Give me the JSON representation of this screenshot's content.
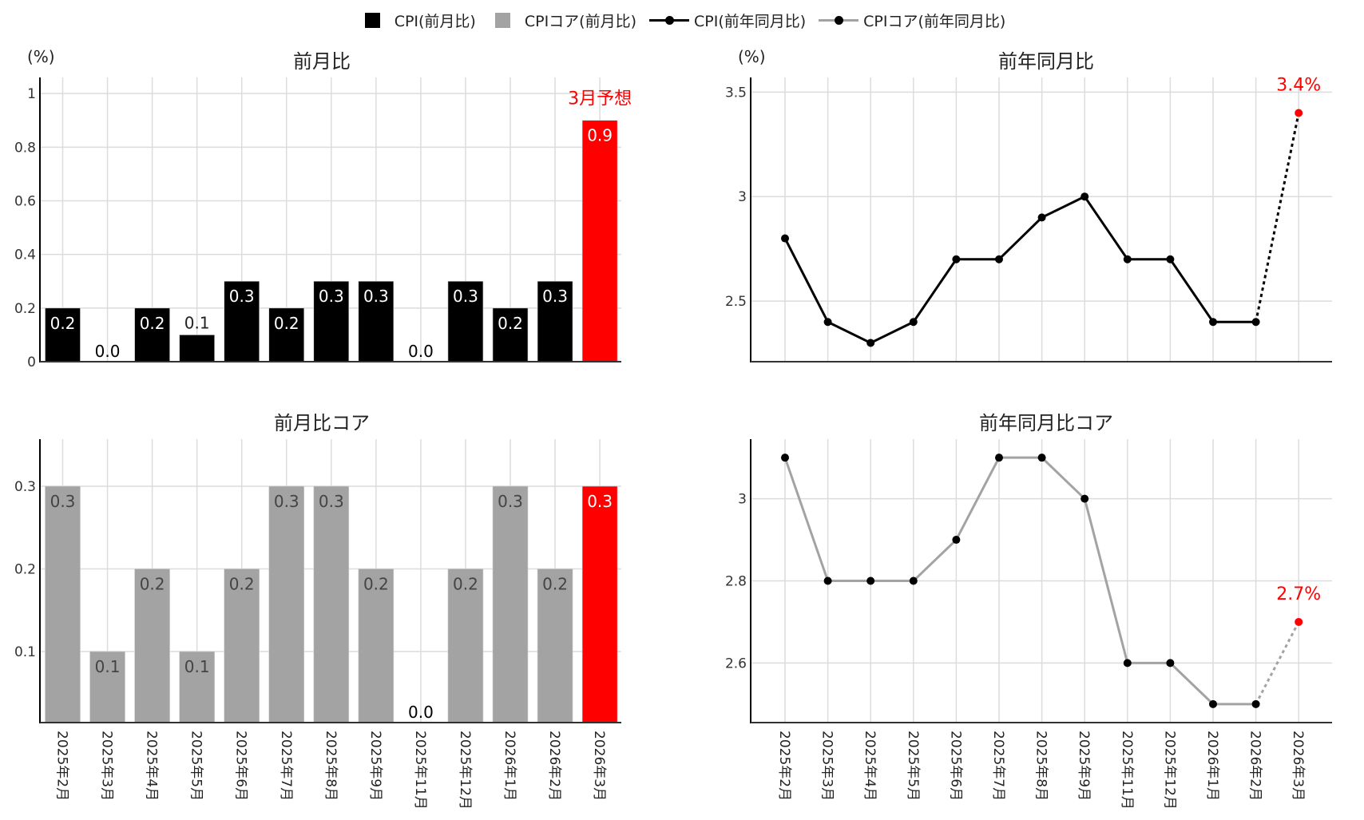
{
  "legend": {
    "items": [
      {
        "label": "CPI(前月比)",
        "type": "square",
        "color": "#000000"
      },
      {
        "label": "CPIコア(前月比)",
        "type": "square",
        "color": "#a3a3a3"
      },
      {
        "label": "CPI(前年同月比)",
        "type": "line",
        "color": "#000000"
      },
      {
        "label": "CPIコア(前年同月比)",
        "type": "line",
        "color": "#a3a3a3"
      }
    ]
  },
  "colors": {
    "cpi": "#000000",
    "core": "#a3a3a3",
    "forecast": "#ff0000",
    "grid": "#dcdcdc",
    "axis": "#000000",
    "core_label": "#444444"
  },
  "chart_data": [
    {
      "id": "mom",
      "type": "bar",
      "title": "前月比",
      "ylabel": "(%)",
      "categories": [
        "2025年2月",
        "2025年3月",
        "2025年4月",
        "2025年5月",
        "2025年6月",
        "2025年7月",
        "2025年8月",
        "2025年9月",
        "2025年11月",
        "2025年12月",
        "2026年1月",
        "2026年2月",
        "2026年3月"
      ],
      "values": [
        0.2,
        0.0,
        0.2,
        0.1,
        0.3,
        0.2,
        0.3,
        0.3,
        0.0,
        0.3,
        0.2,
        0.3,
        0.9
      ],
      "labels": [
        "0.2",
        "0.0",
        "0.2",
        "0.1",
        "0.3",
        "0.2",
        "0.3",
        "0.3",
        "0.0",
        "0.3",
        "0.2",
        "0.3",
        "0.9"
      ],
      "yticks": [
        0,
        0.2,
        0.4,
        0.6,
        0.8,
        1
      ],
      "ytick_labels": [
        "0",
        "0.2",
        "0.4",
        "0.6",
        "0.8",
        "1"
      ],
      "ylim": [
        0,
        1.06
      ],
      "forecast_index": 12,
      "annotation": "3月予想",
      "grid": true
    },
    {
      "id": "yoy",
      "type": "line",
      "title": "前年同月比",
      "ylabel": "(%)",
      "categories": [
        "2025年2月",
        "2025年3月",
        "2025年4月",
        "2025年5月",
        "2025年6月",
        "2025年7月",
        "2025年8月",
        "2025年9月",
        "2025年11月",
        "2025年12月",
        "2026年1月",
        "2026年2月",
        "2026年3月"
      ],
      "values": [
        2.8,
        2.4,
        2.3,
        2.4,
        2.7,
        2.7,
        2.9,
        3.0,
        2.7,
        2.7,
        2.4,
        2.4,
        3.4
      ],
      "yticks": [
        2.5,
        3,
        3.5
      ],
      "ytick_labels": [
        "2.5",
        "3",
        "3.5"
      ],
      "ylim": [
        2.21,
        3.57
      ],
      "forecast_index": 12,
      "annotation": "3.4%",
      "grid": true
    },
    {
      "id": "mom_core",
      "type": "bar",
      "title": "前月比コア",
      "ylabel": "",
      "categories": [
        "2025年2月",
        "2025年3月",
        "2025年4月",
        "2025年5月",
        "2025年6月",
        "2025年7月",
        "2025年8月",
        "2025年9月",
        "2025年11月",
        "2025年12月",
        "2026年1月",
        "2026年2月",
        "2026年3月"
      ],
      "values": [
        0.3,
        0.1,
        0.2,
        0.1,
        0.2,
        0.3,
        0.3,
        0.2,
        0.0,
        0.2,
        0.3,
        0.2,
        0.3
      ],
      "labels": [
        "0.3",
        "0.1",
        "0.2",
        "0.1",
        "0.2",
        "0.3",
        "0.3",
        "0.2",
        "0.0",
        "0.2",
        "0.3",
        "0.2",
        "0.3"
      ],
      "yticks": [
        0.1,
        0.2,
        0.3
      ],
      "ytick_labels": [
        "0.1",
        "0.2",
        "0.3"
      ],
      "ylim": [
        0.014,
        0.357
      ],
      "forecast_index": 12,
      "grid": true
    },
    {
      "id": "yoy_core",
      "type": "line",
      "title": "前年同月比コア",
      "ylabel": "",
      "categories": [
        "2025年2月",
        "2025年3月",
        "2025年4月",
        "2025年5月",
        "2025年6月",
        "2025年7月",
        "2025年8月",
        "2025年9月",
        "2025年11月",
        "2025年12月",
        "2026年1月",
        "2026年2月",
        "2026年3月"
      ],
      "values": [
        3.1,
        2.8,
        2.8,
        2.8,
        2.9,
        3.1,
        3.1,
        3.0,
        2.6,
        2.6,
        2.5,
        2.5,
        2.7
      ],
      "yticks": [
        2.6,
        2.8,
        3
      ],
      "ytick_labels": [
        "2.6",
        "2.8",
        "3"
      ],
      "ylim": [
        2.455,
        3.145
      ],
      "forecast_index": 12,
      "annotation": "2.7%",
      "grid": true
    }
  ]
}
